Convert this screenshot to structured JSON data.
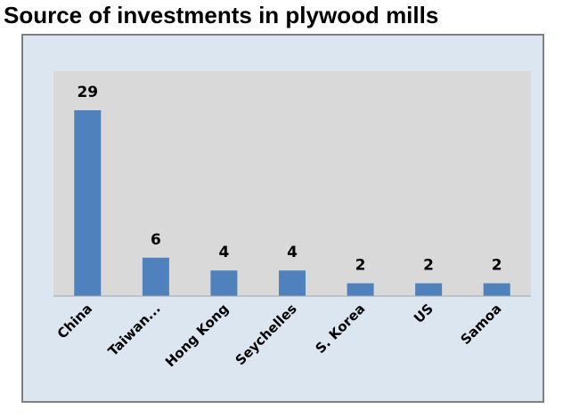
{
  "colors": {
    "bar": "#4f81bd",
    "plot_background": "#d9d9d9",
    "chart_background": "#dce6f1",
    "frame_border": "#7f7f7f"
  },
  "chart_data": {
    "type": "bar",
    "title": "Source of investments in plywood mills",
    "xlabel": "",
    "ylabel": "",
    "categories": [
      "China",
      "Taiwan...",
      "Hong Kong",
      "Seychelles",
      "S. Korea",
      "US",
      "Samoa"
    ],
    "values": [
      29,
      6,
      4,
      4,
      2,
      2,
      2
    ],
    "data_labels": [
      "29",
      "6",
      "4",
      "4",
      "2",
      "2",
      "2"
    ],
    "ylim": [
      0,
      30
    ],
    "grid": false,
    "legend": "none",
    "x_tick_rotation_deg": -45
  }
}
